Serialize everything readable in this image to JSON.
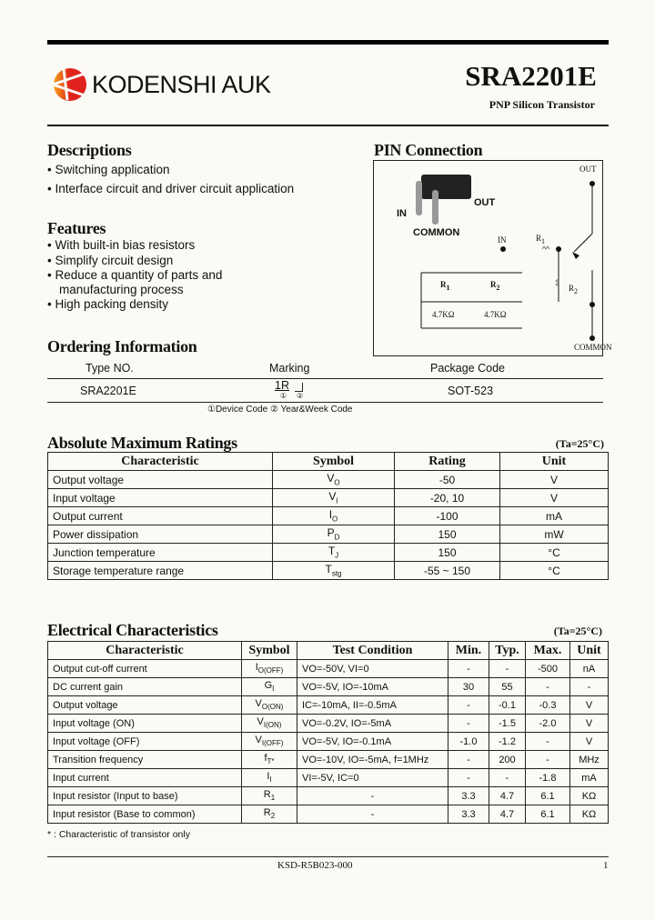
{
  "header": {
    "brand": "KODENSHI AUK",
    "part": "SRA2201E",
    "subtitle": "PNP Silicon Transistor",
    "brand_colors": [
      "#e0231c",
      "#f6a31a"
    ]
  },
  "descriptions": {
    "title": "Descriptions",
    "items": [
      "Switching application",
      "Interface circuit and driver circuit application"
    ]
  },
  "features": {
    "title": "Features",
    "items": [
      "With built-in bias resistors",
      "Simplify circuit design",
      "Reduce a quantity of parts and",
      "manufacturing process",
      "High packing density"
    ]
  },
  "pin": {
    "title": "PIN Connection",
    "pkg_in": "IN",
    "pkg_out": "OUT",
    "pkg_common": "COMMON",
    "out": "OUT",
    "in": "IN",
    "common": "COMMON",
    "r1": "R",
    "r1_sub": "1",
    "r2": "R",
    "r2_sub": "2",
    "table": {
      "h1": "R",
      "h1_sub": "1",
      "h2": "R",
      "h2_sub": "2",
      "v1": "4.7KΩ",
      "v2": "4.7KΩ"
    }
  },
  "ordering": {
    "title": "Ordering Information",
    "headers": [
      "Type NO.",
      "Marking",
      "Package Code"
    ],
    "type": "SRA2201E",
    "marking_code": "1R",
    "marking_mark1": "①",
    "marking_mark2": "②",
    "package": "SOT-523",
    "note": "①Device Code ② Year&Week Code"
  },
  "abs": {
    "title": "Absolute Maximum Ratings",
    "cond": "(Ta=25°C)",
    "headers": [
      "Characteristic",
      "Symbol",
      "Rating",
      "Unit"
    ],
    "rows": [
      {
        "c": "Output voltage",
        "s": "V",
        "ss": "O",
        "r": "-50",
        "u": "V"
      },
      {
        "c": "Input voltage",
        "s": "V",
        "ss": "I",
        "r": "-20, 10",
        "u": "V"
      },
      {
        "c": "Output current",
        "s": "I",
        "ss": "O",
        "r": "-100",
        "u": "mA"
      },
      {
        "c": "Power dissipation",
        "s": "P",
        "ss": "D",
        "r": "150",
        "u": "mW"
      },
      {
        "c": "Junction temperature",
        "s": "T",
        "ss": "J",
        "r": "150",
        "u": "°C"
      },
      {
        "c": "Storage temperature range",
        "s": "T",
        "ss": "stg",
        "r": "-55 ~ 150",
        "u": "°C"
      }
    ]
  },
  "elec": {
    "title": "Electrical Characteristics",
    "cond": "(Ta=25°C)",
    "headers": [
      "Characteristic",
      "Symbol",
      "Test Condition",
      "Min.",
      "Typ.",
      "Max.",
      "Unit"
    ],
    "rows": [
      {
        "c": "Output cut-off current",
        "s": "I",
        "ss": "O(OFF)",
        "t": "VO=-50V, VI=0",
        "mn": "-",
        "ty": "-",
        "mx": "-500",
        "u": "nA"
      },
      {
        "c": "DC current gain",
        "s": "G",
        "ss": "I",
        "t": "VO=-5V, IO=-10mA",
        "mn": "30",
        "ty": "55",
        "mx": "-",
        "u": "-"
      },
      {
        "c": "Output voltage",
        "s": "V",
        "ss": "O(ON)",
        "t": "IC=-10mA, II=-0.5mA",
        "mn": "-",
        "ty": "-0.1",
        "mx": "-0.3",
        "u": "V"
      },
      {
        "c": "Input voltage (ON)",
        "s": "V",
        "ss": "I(ON)",
        "t": "VO=-0.2V, IO=-5mA",
        "mn": "-",
        "ty": "-1.5",
        "mx": "-2.0",
        "u": "V"
      },
      {
        "c": "Input voltage (OFF)",
        "s": "V",
        "ss": "I(OFF)",
        "t": "VO=-5V, IO=-0.1mA",
        "mn": "-1.0",
        "ty": "-1.2",
        "mx": "-",
        "u": "V"
      },
      {
        "c": "Transition frequency",
        "s": "f",
        "ss": "T*",
        "t": "VO=-10V, IO=-5mA, f=1MHz",
        "mn": "-",
        "ty": "200",
        "mx": "-",
        "u": "MHz"
      },
      {
        "c": "Input current",
        "s": "I",
        "ss": "I",
        "t": "VI=-5V, IC=0",
        "mn": "-",
        "ty": "-",
        "mx": "-1.8",
        "u": "mA"
      },
      {
        "c": "Input resistor (Input to base)",
        "s": "R",
        "ss": "1",
        "t": "-",
        "mn": "3.3",
        "ty": "4.7",
        "mx": "6.1",
        "u": "KΩ"
      },
      {
        "c": "Input resistor (Base to common)",
        "s": "R",
        "ss": "2",
        "t": "-",
        "mn": "3.3",
        "ty": "4.7",
        "mx": "6.1",
        "u": "KΩ"
      }
    ],
    "footnote": "* : Characteristic of transistor only"
  },
  "footer": {
    "doc": "KSD-R5B023-000",
    "page": "1"
  }
}
